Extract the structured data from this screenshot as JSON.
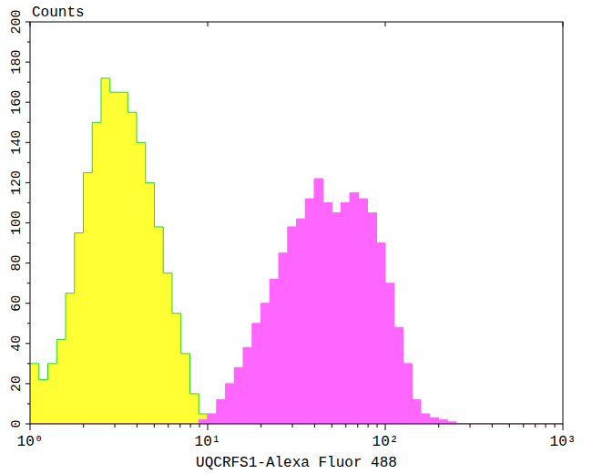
{
  "chart_data": {
    "type": "histogram",
    "y_label": "Counts",
    "x_label": "UQCRFS1-Alexa Fluor 488",
    "log": "x",
    "xlim": [
      1,
      1000
    ],
    "xticks": [
      {
        "value": 1,
        "label": "10⁰"
      },
      {
        "value": 10,
        "label": "10¹"
      },
      {
        "value": 100,
        "label": "10²"
      },
      {
        "value": 1000,
        "label": "10³"
      }
    ],
    "ylim": [
      0,
      200
    ],
    "yticks": [
      0,
      20,
      40,
      60,
      80,
      100,
      120,
      140,
      160,
      180,
      200
    ],
    "bins": [
      1,
      1.122,
      1.259,
      1.413,
      1.585,
      1.778,
      1.995,
      2.239,
      2.512,
      2.818,
      3.162,
      3.548,
      3.981,
      4.467,
      5.012,
      5.623,
      6.31,
      7.079,
      7.943,
      8.913,
      10,
      11.22,
      12.59,
      14.13,
      15.85,
      17.78,
      19.95,
      22.39,
      25.12,
      28.18,
      31.62,
      35.48,
      39.81,
      44.67,
      50.12,
      56.23,
      63.1,
      70.79,
      79.43,
      89.13,
      100,
      112.2,
      125.9,
      141.3,
      158.5,
      177.8,
      199.5,
      223.9,
      251.2,
      281.8,
      316.2,
      354.8,
      398.1,
      446.7,
      501.2,
      562.3,
      631,
      707.9,
      794.3,
      891.3,
      1000
    ],
    "series": [
      {
        "color": "#ffff33",
        "values": [
          30,
          22,
          30,
          42,
          65,
          95,
          125,
          150,
          172,
          165,
          165,
          155,
          140,
          120,
          98,
          75,
          55,
          35,
          15,
          5,
          2,
          1,
          0,
          0,
          0,
          0,
          0,
          0,
          0,
          0,
          0,
          0,
          0,
          0,
          0,
          0,
          0,
          0,
          0,
          0,
          0,
          0,
          0,
          0,
          0,
          0,
          0,
          0,
          0,
          0,
          0,
          0,
          0,
          0,
          0,
          0,
          0,
          0,
          0,
          0
        ]
      },
      {
        "color": "#ff66ff",
        "values": [
          0,
          0,
          0,
          0,
          0,
          0,
          0,
          0,
          0,
          0,
          0,
          0,
          0,
          0,
          0,
          0,
          0,
          0,
          0,
          2,
          5,
          12,
          20,
          28,
          38,
          50,
          60,
          72,
          85,
          98,
          102,
          112,
          122,
          110,
          105,
          110,
          115,
          112,
          105,
          90,
          70,
          48,
          30,
          12,
          5,
          3,
          2,
          1,
          0,
          0,
          0,
          0,
          0,
          0,
          0,
          0,
          0,
          0,
          0,
          0
        ]
      }
    ]
  }
}
